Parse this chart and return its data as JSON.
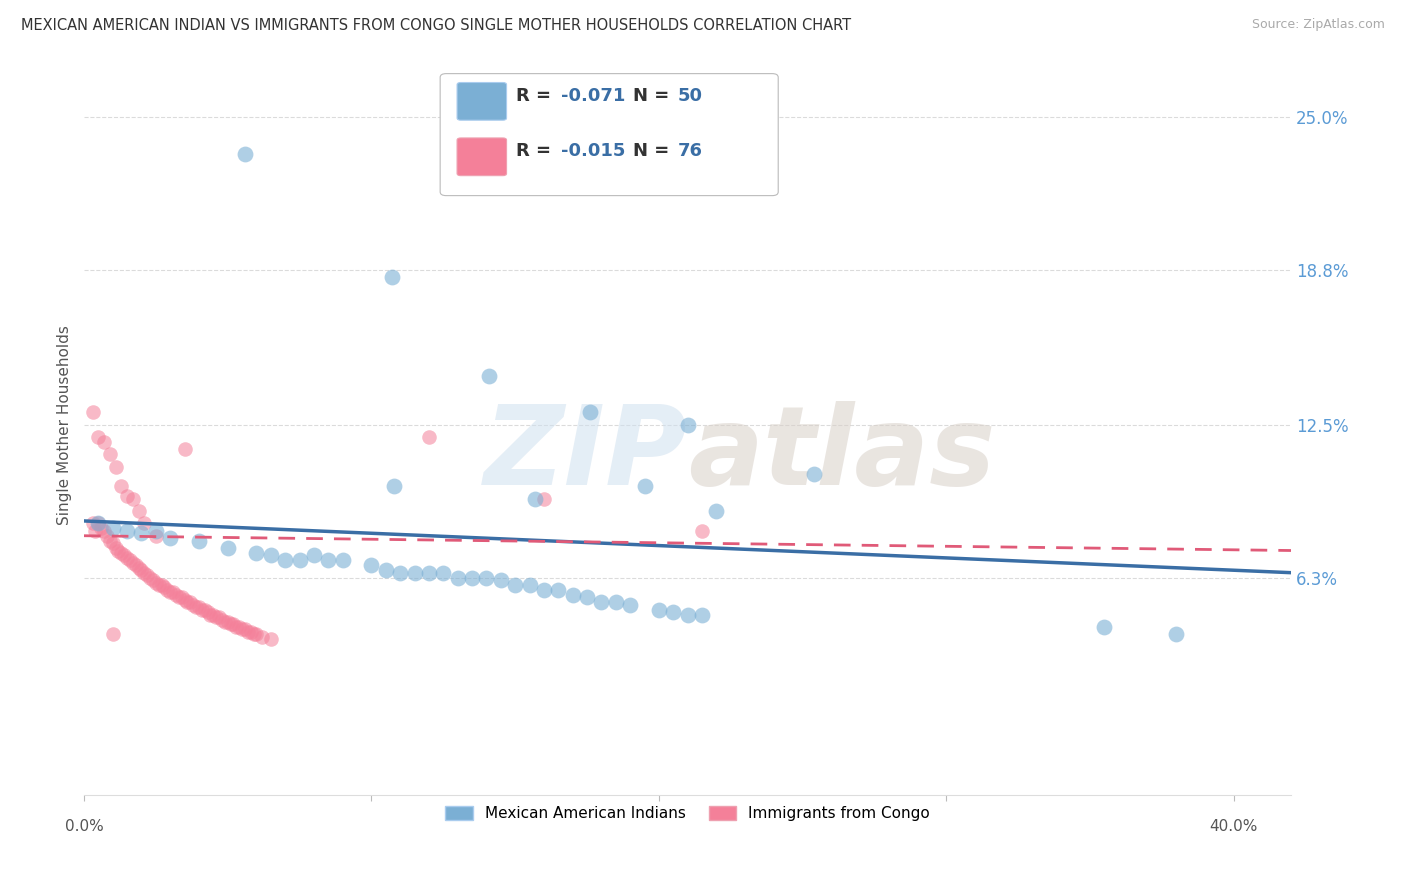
{
  "title": "MEXICAN AMERICAN INDIAN VS IMMIGRANTS FROM CONGO SINGLE MOTHER HOUSEHOLDS CORRELATION CHART",
  "source": "Source: ZipAtlas.com",
  "ylabel": "Single Mother Households",
  "ytick_labels": [
    "6.3%",
    "12.5%",
    "18.8%",
    "25.0%"
  ],
  "ytick_values": [
    0.063,
    0.125,
    0.188,
    0.25
  ],
  "xlim": [
    0.0,
    0.42
  ],
  "ylim": [
    -0.025,
    0.275
  ],
  "color_blue": "#7bafd4",
  "color_pink": "#f48099",
  "line_blue": "#3a6ea5",
  "line_pink": "#e05a78",
  "watermark_zip": "ZIP",
  "watermark_atlas": "atlas",
  "legend_label1": "Mexican American Indians",
  "legend_label2": "Immigrants from Congo",
  "blue_x": [
    0.056,
    0.107,
    0.141,
    0.176,
    0.21,
    0.254,
    0.108,
    0.157,
    0.195,
    0.22,
    0.005,
    0.01,
    0.015,
    0.02,
    0.025,
    0.03,
    0.04,
    0.05,
    0.06,
    0.065,
    0.07,
    0.075,
    0.08,
    0.085,
    0.09,
    0.1,
    0.105,
    0.11,
    0.115,
    0.12,
    0.125,
    0.13,
    0.135,
    0.14,
    0.145,
    0.15,
    0.155,
    0.16,
    0.165,
    0.17,
    0.175,
    0.18,
    0.185,
    0.19,
    0.2,
    0.205,
    0.21,
    0.215,
    0.355,
    0.38
  ],
  "blue_y": [
    0.235,
    0.185,
    0.145,
    0.13,
    0.125,
    0.105,
    0.1,
    0.095,
    0.1,
    0.09,
    0.085,
    0.083,
    0.082,
    0.081,
    0.082,
    0.079,
    0.078,
    0.075,
    0.073,
    0.072,
    0.07,
    0.07,
    0.072,
    0.07,
    0.07,
    0.068,
    0.066,
    0.065,
    0.065,
    0.065,
    0.065,
    0.063,
    0.063,
    0.063,
    0.062,
    0.06,
    0.06,
    0.058,
    0.058,
    0.056,
    0.055,
    0.053,
    0.053,
    0.052,
    0.05,
    0.049,
    0.048,
    0.048,
    0.043,
    0.04
  ],
  "pink_x": [
    0.003,
    0.004,
    0.005,
    0.006,
    0.007,
    0.008,
    0.009,
    0.01,
    0.011,
    0.012,
    0.013,
    0.014,
    0.015,
    0.016,
    0.017,
    0.018,
    0.019,
    0.02,
    0.021,
    0.022,
    0.023,
    0.024,
    0.025,
    0.026,
    0.027,
    0.028,
    0.029,
    0.03,
    0.031,
    0.032,
    0.033,
    0.034,
    0.035,
    0.036,
    0.037,
    0.038,
    0.039,
    0.04,
    0.041,
    0.042,
    0.043,
    0.044,
    0.045,
    0.046,
    0.047,
    0.048,
    0.049,
    0.05,
    0.051,
    0.052,
    0.053,
    0.054,
    0.055,
    0.056,
    0.057,
    0.058,
    0.059,
    0.06,
    0.062,
    0.065,
    0.003,
    0.005,
    0.007,
    0.009,
    0.011,
    0.013,
    0.015,
    0.017,
    0.019,
    0.021,
    0.025,
    0.035,
    0.12,
    0.16,
    0.215,
    0.01
  ],
  "pink_y": [
    0.085,
    0.082,
    0.085,
    0.083,
    0.082,
    0.08,
    0.078,
    0.077,
    0.075,
    0.074,
    0.073,
    0.072,
    0.071,
    0.07,
    0.069,
    0.068,
    0.067,
    0.066,
    0.065,
    0.064,
    0.063,
    0.062,
    0.061,
    0.06,
    0.06,
    0.059,
    0.058,
    0.057,
    0.057,
    0.056,
    0.055,
    0.055,
    0.054,
    0.053,
    0.053,
    0.052,
    0.051,
    0.051,
    0.05,
    0.05,
    0.049,
    0.048,
    0.048,
    0.047,
    0.047,
    0.046,
    0.045,
    0.045,
    0.044,
    0.044,
    0.043,
    0.043,
    0.042,
    0.042,
    0.041,
    0.041,
    0.04,
    0.04,
    0.039,
    0.038,
    0.13,
    0.12,
    0.118,
    0.113,
    0.108,
    0.1,
    0.096,
    0.095,
    0.09,
    0.085,
    0.08,
    0.115,
    0.12,
    0.095,
    0.082,
    0.04
  ],
  "blue_line_x": [
    0.0,
    0.42
  ],
  "blue_line_y": [
    0.086,
    0.065
  ],
  "pink_line_x": [
    0.0,
    0.42
  ],
  "pink_line_y": [
    0.08,
    0.074
  ]
}
